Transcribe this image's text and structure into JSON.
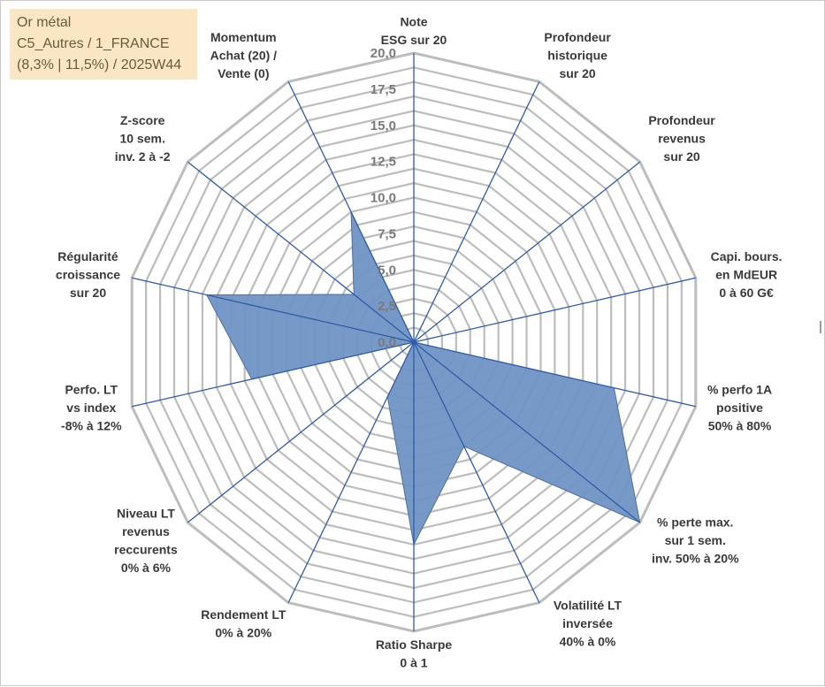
{
  "info": {
    "line1": "Or métal",
    "line2": "C5_Autres / 1_FRANCE",
    "line3": "(8,3% | 11,5%) / 2025W44"
  },
  "colors": {
    "grid": "#bdbdbd",
    "spoke": "#2e5ca8",
    "fill": "#6f93c4",
    "fill_edge": "#4f6fa0",
    "tick_text": "#7a7a7a",
    "label_text": "#3a3a3a"
  },
  "chart_data": {
    "type": "radar",
    "rmin": 0,
    "rmax": 20,
    "ticks": [
      "0,0",
      "2,5",
      "5,0",
      "7,5",
      "10,0",
      "12,5",
      "15,0",
      "17,5",
      "20,0"
    ],
    "grid_rings": 20,
    "categories": [
      [
        "Note",
        "ESG sur 20"
      ],
      [
        "Profondeur",
        "historique",
        "sur 20"
      ],
      [
        "Profondeur",
        "revenus",
        "sur 20"
      ],
      [
        "Capi. bours.",
        "en MdEUR",
        "0 à 60 G€"
      ],
      [
        "% perfo 1A",
        "positive",
        "50% à 80%"
      ],
      [
        "% perte max.",
        "sur 1 sem.",
        "inv. 50% à 20%"
      ],
      [
        "Volatilité LT",
        "inversée",
        "40% à 0%"
      ],
      [
        "Ratio Sharpe",
        "0 à 1"
      ],
      [
        "Rendement LT",
        "0% à 20%"
      ],
      [
        "Niveau LT",
        "revenus",
        "reccurents",
        "0% à 6%"
      ],
      [
        "Perfo. LT",
        "vs index",
        "-8% à 12%"
      ],
      [
        "Régularité",
        "croissance",
        "sur 20"
      ],
      [
        "Z-score",
        "10 sem.",
        "inv. 2 à -2"
      ],
      [
        "Momentum",
        "Achat (20) /",
        "Vente (0)"
      ]
    ],
    "series": [
      {
        "values": [
          0,
          0,
          0,
          0,
          14.2,
          20.0,
          8.0,
          14.0,
          4.2,
          0,
          11.5,
          14.7,
          5.3,
          10.0
        ]
      }
    ]
  }
}
